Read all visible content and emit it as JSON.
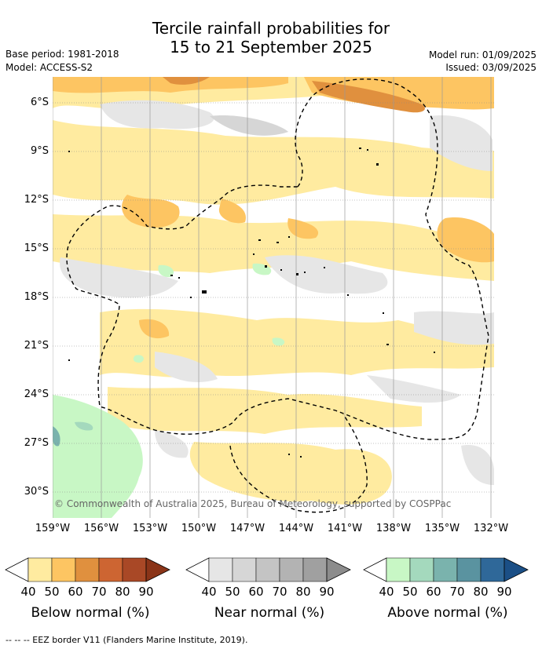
{
  "title": {
    "line1": "Tercile rainfall probabilities for",
    "line2": "15 to 21 September 2025"
  },
  "meta": {
    "base_period": "Base period: 1981-2018",
    "model": "Model: ACCESS-S2",
    "model_run": "Model run: 01/09/2025",
    "issued": "Issued: 03/09/2025"
  },
  "map": {
    "lat_labels": [
      "6°S",
      "9°S",
      "12°S",
      "15°S",
      "18°S",
      "21°S",
      "24°S",
      "27°S",
      "30°S"
    ],
    "lon_labels": [
      "159°W",
      "156°W",
      "153°W",
      "150°W",
      "147°W",
      "144°W",
      "141°W",
      "138°W",
      "135°W",
      "132°W"
    ],
    "copyright": "© Commonwealth of Australia 2025, Bureau of Meteorology, supported by COSPPac"
  },
  "legends": [
    {
      "title": "Below normal (%)",
      "ticks": [
        "40",
        "50",
        "60",
        "70",
        "80",
        "90"
      ],
      "colors": [
        "#ffeba0",
        "#fdc562",
        "#e0903e",
        "#cd6532",
        "#a94826",
        "#8a3418"
      ]
    },
    {
      "title": "Near normal (%)",
      "ticks": [
        "40",
        "50",
        "60",
        "70",
        "80",
        "90"
      ],
      "colors": [
        "#e6e6e6",
        "#d6d6d6",
        "#c4c4c4",
        "#b3b3b3",
        "#a0a0a0",
        "#8c8c8c"
      ]
    },
    {
      "title": "Above normal (%)",
      "ticks": [
        "40",
        "50",
        "60",
        "70",
        "80",
        "90"
      ],
      "colors": [
        "#c8f7c5",
        "#a4d9bd",
        "#7ab3ad",
        "#5a93a0",
        "#2f6899",
        "#1b4f86"
      ]
    }
  ],
  "footer": "--  --  -- EEZ border V11 (Flanders Marine Institute, 2019)."
}
